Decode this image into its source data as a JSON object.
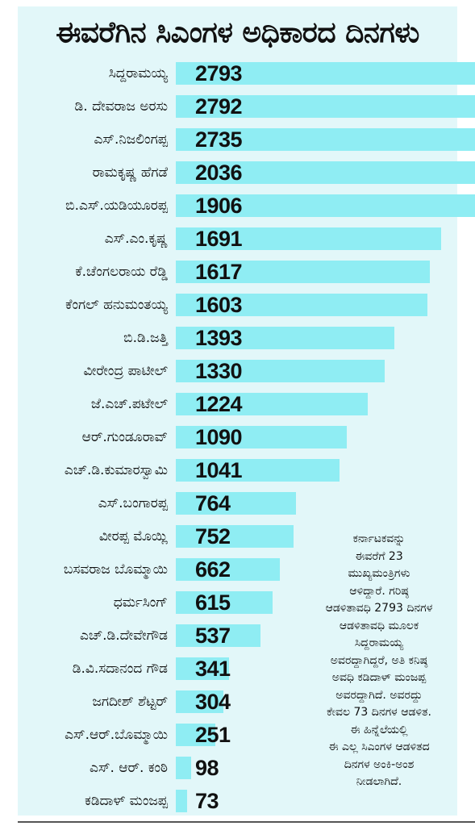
{
  "title": "ಈವರೆಗಿನ ಸಿಎಂಗಳ ಅಧಿಕಾರದ ದಿನಗಳು",
  "chart_data": {
    "type": "bar",
    "orientation": "horizontal",
    "title": "ಈವರೆಗಿನ ಸಿಎಂಗಳ ಅಧಿಕಾರದ ದಿನಗಳು",
    "xlabel": "",
    "ylabel": "",
    "grid": false,
    "categories": [
      "ಸಿದ್ದರಾಮಯ್ಯ",
      "ಡಿ. ದೇವರಾಜ ಅರಸು",
      "ಎಸ್.ನಿಜಲಿಂಗಪ್ಪ",
      "ರಾಮಕೃಷ್ಣ ಹೆಗಡೆ",
      "ಬಿ.ಎಸ್.ಯಡಿಯೂರಪ್ಪ",
      "ಎಸ್.ಎಂ.ಕೃಷ್ಣ",
      "ಕೆ.ಚೆಂಗಲರಾಯ ರೆಡ್ಡಿ",
      "ಕೆಂಗಲ್ ಹನುಮಂತಯ್ಯ",
      "ಬಿ.ಡಿ.ಜತ್ತಿ",
      "ವೀರೇಂದ್ರ ಪಾಟೀಲ್",
      "ಜೆ.ಎಚ್.ಪಟೇಲ್",
      "ಆರ್.ಗುಂಡೂರಾವ್",
      "ಎಚ್.ಡಿ.ಕುಮಾರಸ್ವಾಮಿ",
      "ಎಸ್.ಬಂಗಾರಪ್ಪ",
      "ವೀರಪ್ಪ ಮೊಯ್ಲಿ",
      "ಬಸವರಾಜ ಬೊಮ್ಮಾಯಿ",
      "ಧರ್ಮಸಿಂಗ್",
      "ಎಚ್.ಡಿ.ದೇವೇಗೌಡ",
      "ಡಿ.ವಿ.ಸದಾನಂದ ಗೌಡ",
      "ಜಗದೀಶ್ ಶೆಟ್ಟರ್",
      "ಎಸ್.ಆರ್.ಬೊಮ್ಮಾಯಿ",
      "ಎಸ್. ಆರ್. ಕಂಠಿ",
      "ಕಡಿದಾಳ್ ಮಂಜಪ್ಪ"
    ],
    "values": [
      2793,
      2792,
      2735,
      2036,
      1906,
      1691,
      1617,
      1603,
      1393,
      1330,
      1224,
      1090,
      1041,
      764,
      752,
      662,
      615,
      537,
      341,
      304,
      251,
      98,
      73
    ],
    "colors": {
      "bar": "#8fedf3",
      "panel": "#e2f7f9"
    }
  },
  "note_lines": [
    "ಕರ್ನಾಟಕವನ್ನು",
    "ಈವರೆಗೆ 23",
    "ಮುಖ್ಯಮಂತ್ರಿಗಳು",
    "ಆಳಿದ್ದಾರೆ. ಗರಿಷ್ಠ",
    "ಆಡಳಿತಾವಧಿ 2793 ದಿನಗಳ",
    "ಆಡಳಿತಾವಧಿ ಮೂಲಕ",
    "ಸಿದ್ದರಾಮಯ್ಯ",
    "ಅವರದ್ದಾಗಿದ್ದರೆ, ಅತಿ ಕನಿಷ್ಠ",
    "ಅವಧಿ ಕಡಿದಾಳ್ ಮಂಜಪ್ಪ",
    "ಅವರದ್ದಾಗಿದೆ. ಅವರದ್ದು",
    "ಕೇವಲ 73 ದಿನಗಳ ಆಡಳಿತ.",
    "ಈ ಹಿನ್ನೆಲೆಯಲ್ಲಿ",
    "ಈ ಎಲ್ಲ ಸಿಎಂಗಳ ಆಡಳಿತದ",
    "ದಿನಗಳ ಅಂಕಿ-ಅಂಶ",
    "ನೀಡಲಾಗಿದೆ."
  ]
}
